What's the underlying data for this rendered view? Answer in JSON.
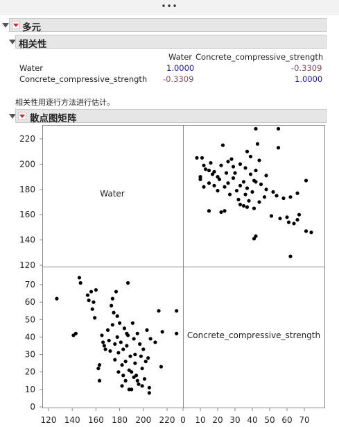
{
  "window": {
    "overflow_dots": "•••"
  },
  "multivariate": {
    "title": "多元"
  },
  "correlations": {
    "title": "相关性",
    "columns": [
      "Water",
      "Concrete_compressive_strength"
    ],
    "rows": [
      {
        "label": "Water",
        "values": [
          "1.0000",
          "-0.3309"
        ]
      },
      {
        "label": "Concrete_compressive_strength",
        "values": [
          "-0.3309",
          "1.0000"
        ]
      }
    ],
    "note": "相关性用逐行方法进行估计。"
  },
  "scatter_matrix": {
    "title": "散点图矩阵",
    "diag_labels": [
      "Water",
      "Concrete_compressive_strength"
    ],
    "water_ticks": [
      "220",
      "200",
      "180",
      "160",
      "140",
      "120"
    ],
    "strength_ticks": [
      "70",
      "60",
      "50",
      "40",
      "30",
      "20",
      "10",
      "0"
    ],
    "x_water_ticks": [
      "120",
      "140",
      "160",
      "180",
      "200",
      "220"
    ],
    "x_strength_ticks": [
      "0",
      "10",
      "20",
      "30",
      "40",
      "50",
      "60",
      "70"
    ]
  },
  "chart_data": {
    "type": "scatter",
    "title": "",
    "variables": [
      "Water",
      "Concrete_compressive_strength"
    ],
    "water_range": [
      118,
      230
    ],
    "strength_range": [
      -2,
      78
    ],
    "grid": false,
    "points": [
      {
        "water": 127,
        "strength": 62
      },
      {
        "water": 141,
        "strength": 41
      },
      {
        "water": 143,
        "strength": 42
      },
      {
        "water": 146,
        "strength": 74
      },
      {
        "water": 147,
        "strength": 71
      },
      {
        "water": 153,
        "strength": 64
      },
      {
        "water": 154,
        "strength": 61
      },
      {
        "water": 156,
        "strength": 66
      },
      {
        "water": 157,
        "strength": 56
      },
      {
        "water": 158,
        "strength": 60
      },
      {
        "water": 159,
        "strength": 51
      },
      {
        "water": 160,
        "strength": 67
      },
      {
        "water": 162,
        "strength": 22
      },
      {
        "water": 163,
        "strength": 24
      },
      {
        "water": 163,
        "strength": 15
      },
      {
        "water": 165,
        "strength": 41
      },
      {
        "water": 166,
        "strength": 37
      },
      {
        "water": 168,
        "strength": 33
      },
      {
        "water": 170,
        "strength": 44
      },
      {
        "water": 172,
        "strength": 32
      },
      {
        "water": 173,
        "strength": 58
      },
      {
        "water": 174,
        "strength": 62
      },
      {
        "water": 175,
        "strength": 54
      },
      {
        "water": 176,
        "strength": 27
      },
      {
        "water": 176,
        "strength": 36
      },
      {
        "water": 177,
        "strength": 66
      },
      {
        "water": 178,
        "strength": 40
      },
      {
        "water": 179,
        "strength": 20
      },
      {
        "water": 180,
        "strength": 48
      },
      {
        "water": 181,
        "strength": 37
      },
      {
        "water": 182,
        "strength": 24
      },
      {
        "water": 182,
        "strength": 12
      },
      {
        "water": 183,
        "strength": 33
      },
      {
        "water": 184,
        "strength": 45
      },
      {
        "water": 185,
        "strength": 26
      },
      {
        "water": 185,
        "strength": 15
      },
      {
        "water": 186,
        "strength": 35
      },
      {
        "water": 187,
        "strength": 41
      },
      {
        "water": 187,
        "strength": 71
      },
      {
        "water": 188,
        "strength": 21
      },
      {
        "water": 189,
        "strength": 29
      },
      {
        "water": 190,
        "strength": 10
      },
      {
        "water": 191,
        "strength": 48
      },
      {
        "water": 192,
        "strength": 17
      },
      {
        "water": 192,
        "strength": 39
      },
      {
        "water": 193,
        "strength": 30
      },
      {
        "water": 193,
        "strength": 25
      },
      {
        "water": 194,
        "strength": 18
      },
      {
        "water": 195,
        "strength": 42
      },
      {
        "water": 196,
        "strength": 13
      },
      {
        "water": 197,
        "strength": 36
      },
      {
        "water": 198,
        "strength": 29
      },
      {
        "water": 199,
        "strength": 22
      },
      {
        "water": 200,
        "strength": 33
      },
      {
        "water": 201,
        "strength": 16
      },
      {
        "water": 203,
        "strength": 44
      },
      {
        "water": 204,
        "strength": 28
      },
      {
        "water": 205,
        "strength": 11
      },
      {
        "water": 205,
        "strength": 8
      },
      {
        "water": 206,
        "strength": 39
      },
      {
        "water": 210,
        "strength": 37
      },
      {
        "water": 213,
        "strength": 55
      },
      {
        "water": 215,
        "strength": 23
      },
      {
        "water": 216,
        "strength": 43
      },
      {
        "water": 228,
        "strength": 55
      },
      {
        "water": 228,
        "strength": 42
      },
      {
        "water": 186,
        "strength": 42
      },
      {
        "water": 174,
        "strength": 47
      },
      {
        "water": 171,
        "strength": 38
      },
      {
        "water": 179,
        "strength": 31
      },
      {
        "water": 190,
        "strength": 20
      },
      {
        "water": 195,
        "strength": 15
      },
      {
        "water": 183,
        "strength": 18
      },
      {
        "water": 167,
        "strength": 35
      },
      {
        "water": 199,
        "strength": 12
      },
      {
        "water": 202,
        "strength": 26
      },
      {
        "water": 178,
        "strength": 52
      },
      {
        "water": 188,
        "strength": 10
      }
    ]
  }
}
